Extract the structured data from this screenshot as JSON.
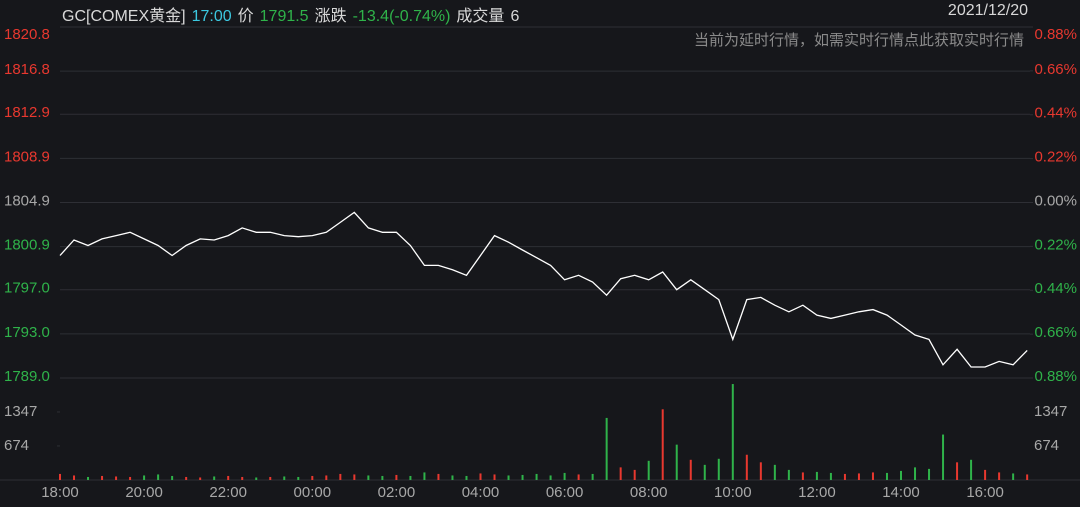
{
  "chart_data": [
    {
      "type": "line",
      "title": "GC[COMEX黄金]",
      "time": "17:00",
      "price_label": "价",
      "price": 1791.5,
      "change_label": "涨跌",
      "change_text": "-13.4(-0.74%)",
      "volume_label": "成交量",
      "volume": 6,
      "date": "2021/12/20",
      "note": "当前为延时行情，如需实时行情点此获取实时行情",
      "color": "#ffffff",
      "up_color": "#e8382f",
      "down_color": "#2fb34a",
      "flat_color": "#a8a8a8",
      "grid": true,
      "x": [
        "18:00",
        "18:20",
        "18:40",
        "19:00",
        "19:20",
        "19:40",
        "20:00",
        "20:20",
        "20:40",
        "21:00",
        "21:20",
        "21:40",
        "22:00",
        "22:20",
        "22:40",
        "23:00",
        "23:20",
        "23:40",
        "00:00",
        "00:20",
        "00:40",
        "01:00",
        "01:20",
        "01:40",
        "02:00",
        "02:20",
        "02:40",
        "03:00",
        "03:20",
        "03:40",
        "04:00",
        "04:20",
        "04:40",
        "05:00",
        "05:20",
        "05:40",
        "06:00",
        "06:20",
        "06:40",
        "07:00",
        "07:20",
        "07:40",
        "08:00",
        "08:20",
        "08:40",
        "09:00",
        "09:20",
        "09:40",
        "10:00",
        "10:20",
        "10:40",
        "11:00",
        "11:20",
        "11:40",
        "12:00",
        "12:20",
        "12:40",
        "13:00",
        "13:20",
        "13:40",
        "14:00",
        "14:20",
        "14:40",
        "15:00",
        "15:20",
        "15:40",
        "16:00",
        "16:20",
        "16:40",
        "17:00"
      ],
      "values": [
        1800.1,
        1801.5,
        1801.0,
        1801.6,
        1801.9,
        1802.2,
        1801.6,
        1801.0,
        1800.1,
        1801.0,
        1801.6,
        1801.5,
        1801.9,
        1802.6,
        1802.2,
        1802.2,
        1801.9,
        1801.8,
        1801.9,
        1802.2,
        1803.1,
        1804.0,
        1802.6,
        1802.2,
        1802.2,
        1801.0,
        1799.2,
        1799.2,
        1798.8,
        1798.3,
        1800.1,
        1801.9,
        1801.3,
        1800.6,
        1799.9,
        1799.2,
        1797.9,
        1798.3,
        1797.7,
        1796.5,
        1798.0,
        1798.3,
        1797.9,
        1798.6,
        1797.0,
        1797.9,
        1797.0,
        1796.1,
        1792.5,
        1796.1,
        1796.3,
        1795.6,
        1795.0,
        1795.6,
        1794.7,
        1794.4,
        1794.7,
        1795.0,
        1795.2,
        1794.7,
        1793.8,
        1792.9,
        1792.5,
        1790.2,
        1791.6,
        1790.0,
        1790.0,
        1790.5,
        1790.2,
        1791.5
      ],
      "ylim": [
        1789.0,
        1820.8
      ],
      "yticks": [
        1820.8,
        1816.8,
        1812.9,
        1808.9,
        1804.9,
        1800.9,
        {
          "value": 1797.0,
          "label": "1797.0"
        },
        {
          "value": 1793.0,
          "label": "1793.0"
        },
        {
          "value": 1789.0,
          "label": "1789.0"
        }
      ],
      "y2lim": [
        -0.88,
        0.88
      ],
      "y2ticks": [
        {
          "value": 0.88,
          "label": "0.88%"
        },
        {
          "value": 0.66,
          "label": "0.66%"
        },
        {
          "value": 0.44,
          "label": "0.44%"
        },
        {
          "value": 0.22,
          "label": "0.22%"
        },
        {
          "value": 0,
          "label": "0.00%"
        },
        {
          "value": -0.22,
          "label": "0.22%"
        },
        {
          "value": -0.44,
          "label": "0.44%"
        },
        {
          "value": -0.66,
          "label": "0.66%"
        },
        {
          "value": -0.88,
          "label": "0.88%"
        }
      ]
    },
    {
      "type": "bar",
      "values": [
        120,
        90,
        60,
        80,
        70,
        60,
        90,
        110,
        80,
        60,
        50,
        70,
        80,
        60,
        50,
        60,
        70,
        60,
        80,
        90,
        120,
        110,
        90,
        80,
        100,
        80,
        150,
        120,
        90,
        80,
        130,
        110,
        90,
        100,
        120,
        90,
        140,
        110,
        120,
        1229,
        250,
        200,
        380,
        1400,
        700,
        400,
        300,
        420,
        1900,
        500,
        350,
        300,
        200,
        150,
        160,
        140,
        120,
        130,
        150,
        140,
        180,
        250,
        220,
        900,
        350,
        400,
        200,
        150,
        130,
        110
      ],
      "ylim": [
        0,
        1980
      ],
      "yticks": [
        1347,
        674
      ],
      "xticks": [
        "18:00",
        "20:00",
        "22:00",
        "00:00",
        "02:00",
        "04:00",
        "06:00",
        "08:00",
        "10:00",
        "12:00",
        "14:00",
        "16:00"
      ]
    }
  ]
}
